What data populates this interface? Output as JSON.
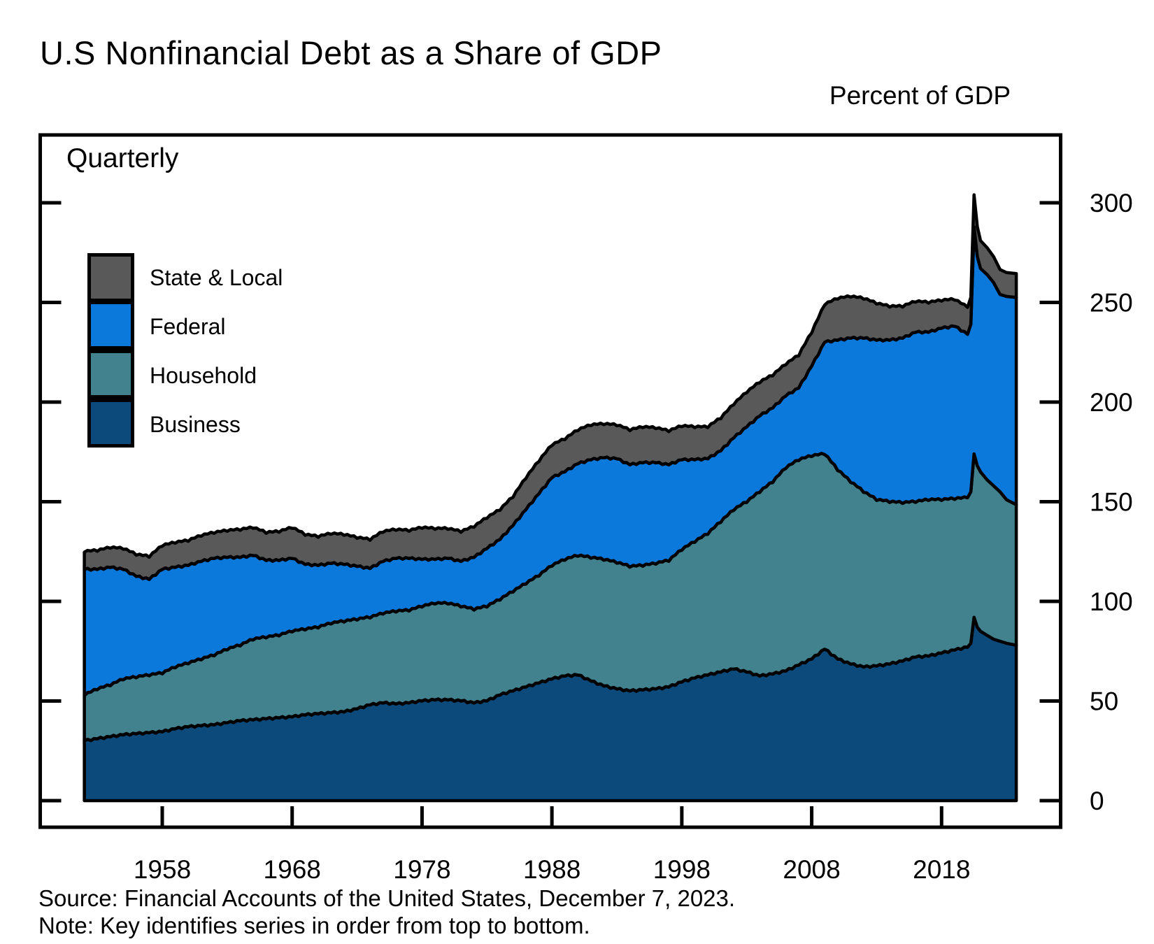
{
  "title": "U.S Nonfinancial Debt as a Share of GDP",
  "y_axis_title": "Percent of GDP",
  "frequency_label": "Quarterly",
  "source": "Source: Financial Accounts of the United States, December 7, 2023.",
  "note": "Note: Key identifies series in order from top to bottom.",
  "legend_order_note": "top to bottom: State & Local, Federal, Household, Business",
  "chart_data": {
    "type": "area",
    "stacked": true,
    "title": "U.S Nonfinancial Debt as a Share of GDP",
    "ylabel": "Percent of GDP",
    "frequency": "Quarterly",
    "axes": {
      "y_ticks": [
        0,
        50,
        100,
        150,
        200,
        250,
        300
      ],
      "x_ticks": [
        1958,
        1968,
        1978,
        1988,
        1998,
        2008,
        2018
      ],
      "ylim": [
        -13,
        334
      ],
      "xlim": [
        1948.6,
        2027.5
      ],
      "grid": false,
      "tick_style": "inward"
    },
    "x": [
      1952,
      1953,
      1954,
      1955,
      1956,
      1957,
      1958,
      1959,
      1960,
      1961,
      1962,
      1963,
      1964,
      1965,
      1966,
      1967,
      1968,
      1969,
      1970,
      1971,
      1972,
      1973,
      1974,
      1975,
      1976,
      1977,
      1978,
      1979,
      1980,
      1981,
      1982,
      1983,
      1984,
      1985,
      1986,
      1987,
      1988,
      1989,
      1990,
      1991,
      1992,
      1993,
      1994,
      1995,
      1996,
      1997,
      1998,
      1999,
      2000,
      2001,
      2002,
      2003,
      2004,
      2005,
      2006,
      2007,
      2008,
      2009,
      2010,
      2011,
      2012,
      2013,
      2014,
      2015,
      2016,
      2017,
      2018,
      2019,
      2020,
      2020.25,
      2020.5,
      2020.75,
      2021,
      2021.5,
      2022,
      2022.5,
      2023,
      2023.75
    ],
    "series": [
      {
        "name": "Business",
        "color": "#0c4a7b",
        "values": [
          30,
          31,
          32,
          33,
          33.5,
          34,
          34.5,
          36,
          37,
          37.5,
          38,
          39,
          40,
          40.5,
          41,
          41.5,
          42,
          43,
          43.5,
          44,
          44.5,
          46,
          48,
          49,
          48.5,
          49,
          50,
          50.5,
          50.5,
          50,
          49,
          50,
          53,
          55,
          57,
          59,
          61,
          62.5,
          63,
          60,
          57.5,
          56,
          55,
          55.5,
          56,
          57,
          59.5,
          61.5,
          63,
          64.5,
          66,
          64.5,
          62.5,
          63.5,
          65,
          68,
          71,
          76,
          71,
          68.5,
          67,
          67.5,
          68.5,
          70,
          72,
          72.5,
          74,
          75.5,
          77,
          79,
          92,
          87,
          85,
          83,
          81,
          80,
          79,
          78
        ]
      },
      {
        "name": "Household",
        "color": "#41828e",
        "values": [
          23,
          25,
          26,
          28,
          28.5,
          29,
          29.5,
          31,
          32,
          33.5,
          35,
          37,
          38,
          40.5,
          41,
          41.5,
          43,
          43,
          43.5,
          45,
          45.5,
          45,
          44,
          45,
          46.5,
          46.5,
          47.5,
          48.5,
          48.5,
          47.5,
          47,
          47.5,
          48,
          50,
          52,
          54,
          57,
          58.5,
          60,
          62,
          63.5,
          63.5,
          62.5,
          62.5,
          63,
          63.5,
          66.5,
          68.5,
          71,
          75.5,
          80,
          85.5,
          92.5,
          96.5,
          102,
          103,
          102,
          98,
          95,
          91.5,
          88,
          83.5,
          81.5,
          79.5,
          78,
          78.5,
          77,
          76,
          75,
          76,
          82,
          81,
          80,
          78,
          77,
          75,
          72,
          70.5
        ]
      },
      {
        "name": "Federal",
        "color": "#0a79db",
        "values": [
          63,
          60,
          59,
          55,
          50.5,
          48,
          52,
          50,
          49,
          49,
          48.5,
          46,
          44,
          42,
          38.5,
          37.5,
          36.5,
          32.5,
          31,
          30,
          28.5,
          26.5,
          24.5,
          26,
          26.5,
          26,
          23.5,
          22,
          22.5,
          22.5,
          26,
          29,
          30,
          33,
          37,
          41,
          44,
          44,
          46,
          49,
          51,
          52,
          51,
          51.5,
          50.5,
          48,
          45,
          41,
          37.5,
          35.5,
          36,
          37.5,
          38,
          37,
          36,
          36,
          45,
          56,
          65,
          72,
          77,
          80,
          81,
          82.5,
          85,
          84,
          86,
          86.5,
          82,
          84,
          114,
          105,
          102,
          103,
          102,
          99,
          102,
          104
        ]
      },
      {
        "name": "State & Local",
        "color": "#595959",
        "values": [
          9,
          9.5,
          10,
          10.5,
          11,
          11.5,
          12,
          12.5,
          12.5,
          13,
          13,
          13.5,
          14,
          14,
          14,
          14.5,
          15.5,
          15,
          14.5,
          15,
          15,
          14.5,
          14.5,
          15,
          14.5,
          14,
          16,
          15.5,
          15,
          15,
          15.5,
          15.5,
          15,
          14.5,
          16,
          16.5,
          16.5,
          16.5,
          17,
          17.5,
          17,
          17,
          17.5,
          18,
          17.5,
          17,
          17,
          16.5,
          16,
          16.5,
          17,
          17.5,
          17,
          16.5,
          16,
          16.5,
          17,
          19,
          21,
          21,
          20,
          18.5,
          17,
          16,
          15.5,
          15,
          14,
          13.5,
          13.5,
          13.5,
          16,
          15,
          14,
          13.5,
          13,
          12.5,
          12,
          12
        ]
      }
    ]
  }
}
